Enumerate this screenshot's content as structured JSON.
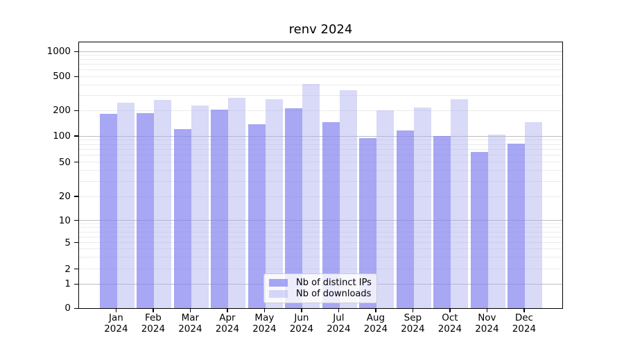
{
  "title": "renv 2024",
  "chart_data": {
    "type": "bar",
    "title": "renv 2024",
    "year": "2024",
    "categories": [
      "Jan 2024",
      "Feb 2024",
      "Mar 2024",
      "Apr 2024",
      "May 2024",
      "Jun 2024",
      "Jul 2024",
      "Aug 2024",
      "Sep 2024",
      "Oct 2024",
      "Nov 2024",
      "Dec 2024"
    ],
    "months": [
      "Jan",
      "Feb",
      "Mar",
      "Apr",
      "May",
      "Jun",
      "Jul",
      "Aug",
      "Sep",
      "Oct",
      "Nov",
      "Dec"
    ],
    "series": [
      {
        "name": "Nb of distinct IPs",
        "key": "distinct-ips",
        "color": "rgba(130,130,240,0.70)",
        "color_hex_on_white": "#a7a7f4",
        "values": [
          182,
          186,
          120,
          205,
          138,
          210,
          146,
          95,
          115,
          100,
          65,
          81
        ]
      },
      {
        "name": "Nb of downloads",
        "key": "downloads",
        "color": "rgba(170,170,240,0.45)",
        "color_hex_on_white": "#d8d8f8",
        "values": [
          245,
          265,
          227,
          280,
          268,
          405,
          344,
          201,
          215,
          268,
          103,
          145
        ]
      }
    ],
    "yscale": "symlog",
    "yticks": [
      0,
      1,
      2,
      5,
      10,
      20,
      50,
      100,
      200,
      500,
      1000
    ],
    "y_major_ticks": [
      1,
      10,
      100,
      1000
    ],
    "ylim": [
      0,
      1300
    ],
    "grid": true,
    "legend_position": "lower center",
    "grid_major_color": "#bdbdbd",
    "grid_minor_color": "#ebebeb"
  }
}
